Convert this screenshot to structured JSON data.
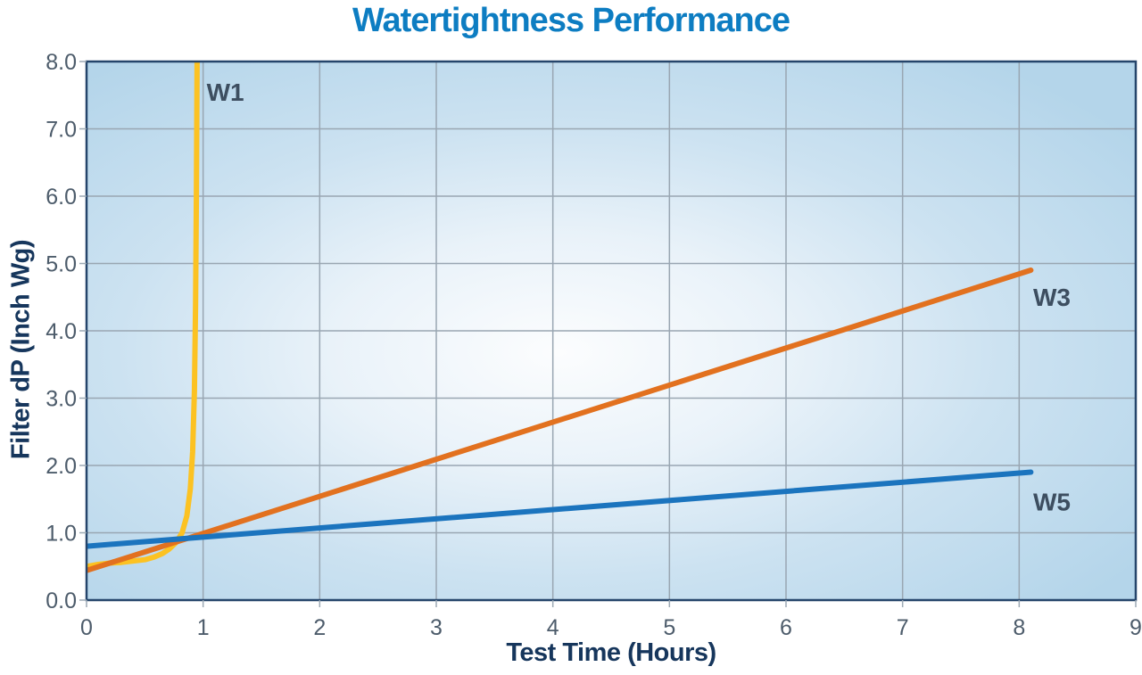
{
  "page": {
    "background": "#FFFFFF"
  },
  "chart_data": {
    "type": "line",
    "title": "Watertightness Performance",
    "title_color": "#0D7DC2",
    "xlabel": "Test Time (Hours)",
    "ylabel": "Filter dP (Inch Wg)",
    "axis_title_color": "#16365C",
    "tick_label_color": "#4D5C6B",
    "tick_color": "#9CA9B4",
    "gridline_color": "#99A6B2",
    "plot_border_color": "#25456B",
    "plot_bg_gradient": [
      "#FCFDFE",
      "#E9F2F9",
      "#CCE2F1",
      "#B4D5EA"
    ],
    "grid": true,
    "legend_position": "inline-labels",
    "xlim": [
      0,
      9
    ],
    "ylim": [
      0,
      8
    ],
    "xticks": {
      "values": [
        0,
        1,
        2,
        3,
        4,
        5,
        6,
        7,
        8,
        9
      ],
      "labels": [
        "0",
        "1",
        "2",
        "3",
        "4",
        "5",
        "6",
        "7",
        "8",
        "9"
      ]
    },
    "yticks": {
      "values": [
        0,
        1,
        2,
        3,
        4,
        5,
        6,
        7,
        8
      ],
      "labels": [
        "0.0",
        "1.0",
        "2.0",
        "3.0",
        "4.0",
        "5.0",
        "6.0",
        "7.0",
        "8.0"
      ]
    },
    "series_label_color": "#3D4E60",
    "series": [
      {
        "name": "W1",
        "color": "#FCC222",
        "label": {
          "text": "W1",
          "x": 1.03,
          "y": 7.42
        },
        "points": [
          [
            0,
            0.5
          ],
          [
            0.1,
            0.53
          ],
          [
            0.2,
            0.55
          ],
          [
            0.3,
            0.56
          ],
          [
            0.4,
            0.58
          ],
          [
            0.5,
            0.6
          ],
          [
            0.58,
            0.64
          ],
          [
            0.65,
            0.69
          ],
          [
            0.71,
            0.76
          ],
          [
            0.77,
            0.86
          ],
          [
            0.82,
            1.0
          ],
          [
            0.86,
            1.25
          ],
          [
            0.89,
            1.65
          ],
          [
            0.91,
            2.2
          ],
          [
            0.925,
            3.1
          ],
          [
            0.935,
            4.4
          ],
          [
            0.942,
            6.0
          ],
          [
            0.948,
            8.0
          ]
        ]
      },
      {
        "name": "W3",
        "color": "#E2711F",
        "label": {
          "text": "W3",
          "x": 8.12,
          "y": 4.37
        },
        "points": [
          [
            0,
            0.44
          ],
          [
            8.1,
            4.9
          ]
        ]
      },
      {
        "name": "W5",
        "color": "#1B74BE",
        "label": {
          "text": "W5",
          "x": 8.12,
          "y": 1.33
        },
        "points": [
          [
            0,
            0.8
          ],
          [
            8.1,
            1.9
          ]
        ]
      }
    ]
  }
}
